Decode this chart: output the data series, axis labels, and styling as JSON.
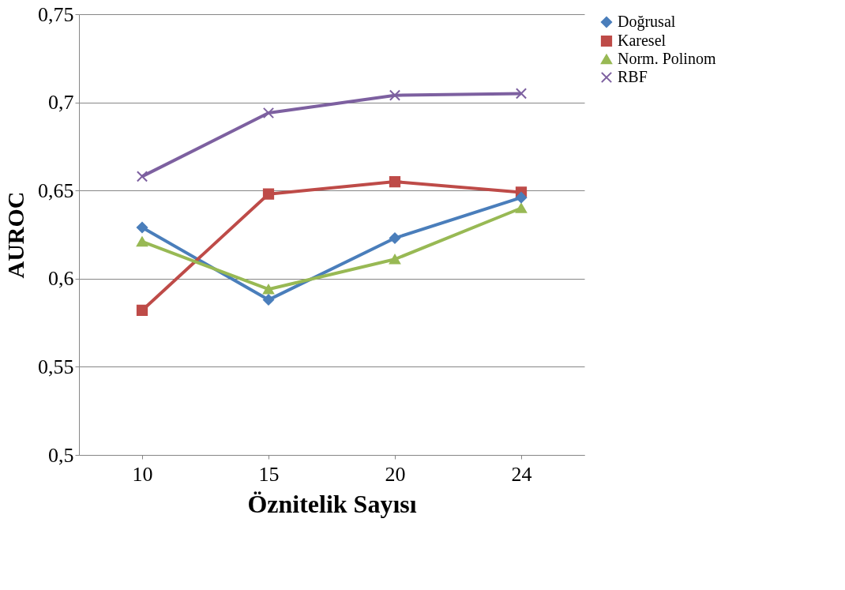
{
  "chart_data": {
    "type": "line",
    "xlabel": "Öznitelik Sayısı",
    "ylabel": "AUROC",
    "categories": [
      "10",
      "15",
      "20",
      "24"
    ],
    "series": [
      {
        "name": "Doğrusal",
        "color": "#4a7ebb",
        "marker": "diamond",
        "values": [
          0.629,
          0.588,
          0.623,
          0.646
        ]
      },
      {
        "name": "Karesel",
        "color": "#be4b48",
        "marker": "square",
        "values": [
          0.582,
          0.648,
          0.655,
          0.649
        ]
      },
      {
        "name": "Norm. Polinom",
        "color": "#98b954",
        "marker": "triangle",
        "values": [
          0.621,
          0.594,
          0.611,
          0.64
        ]
      },
      {
        "name": "RBF",
        "color": "#7d60a0",
        "marker": "cross",
        "values": [
          0.658,
          0.694,
          0.704,
          0.705
        ]
      }
    ],
    "ylim": [
      0.5,
      0.75
    ],
    "yticks": [
      {
        "value": 0.5,
        "label": "0,5"
      },
      {
        "value": 0.55,
        "label": "0,55"
      },
      {
        "value": 0.6,
        "label": "0,6"
      },
      {
        "value": 0.65,
        "label": "0,65"
      },
      {
        "value": 0.7,
        "label": "0,7"
      },
      {
        "value": 0.75,
        "label": "0,75"
      }
    ],
    "grid": "y",
    "legend": "right",
    "line_style": "solid"
  }
}
